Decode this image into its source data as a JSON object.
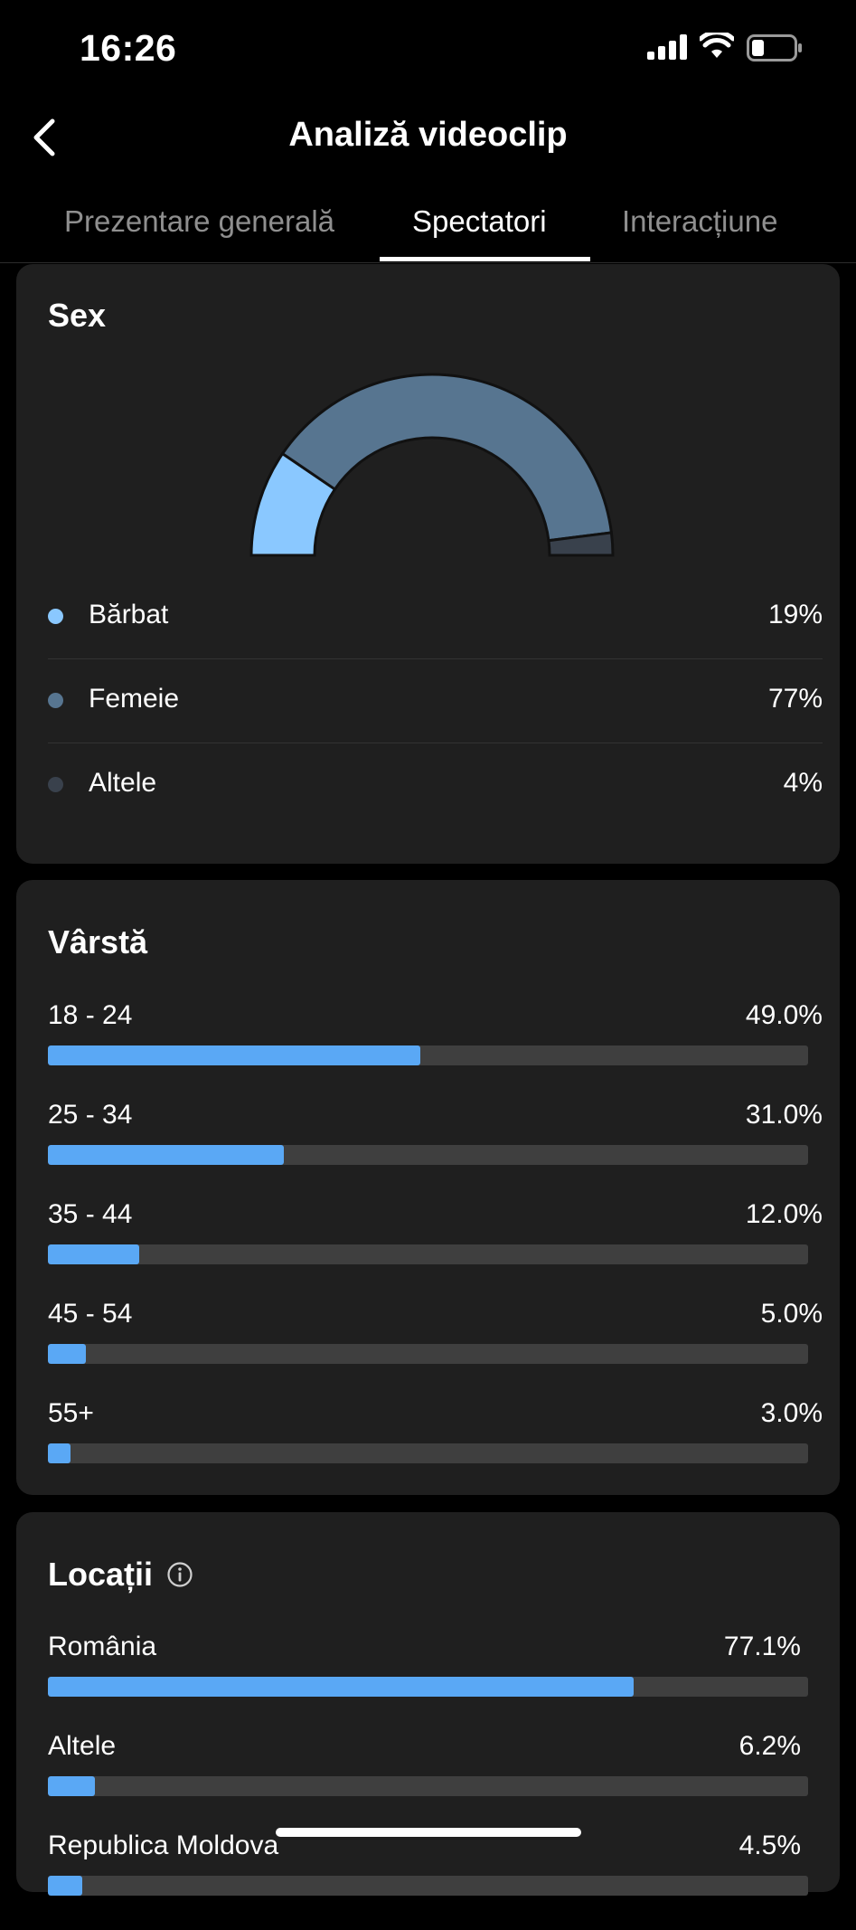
{
  "status": {
    "time": "16:26"
  },
  "header": {
    "title": "Analiză videoclip"
  },
  "tabs": [
    {
      "label": "Prezentare generală",
      "active": false
    },
    {
      "label": "Spectatori",
      "active": true
    },
    {
      "label": "Interacțiune",
      "active": false
    }
  ],
  "sex": {
    "title": "Sex",
    "items": [
      {
        "label": "Bărbat",
        "value": "19%",
        "percent": 19,
        "color": "#8ac8ff"
      },
      {
        "label": "Femeie",
        "value": "77%",
        "percent": 77,
        "color": "#577590"
      },
      {
        "label": "Altele",
        "value": "4%",
        "percent": 4,
        "color": "#39414c"
      }
    ]
  },
  "age": {
    "title": "Vârstă",
    "rows": [
      {
        "label": "18 - 24",
        "value": "49.0%",
        "percent": 49.0
      },
      {
        "label": "25 - 34",
        "value": "31.0%",
        "percent": 31.0
      },
      {
        "label": "35 - 44",
        "value": "12.0%",
        "percent": 12.0
      },
      {
        "label": "45 - 54",
        "value": "5.0%",
        "percent": 5.0
      },
      {
        "label": "55+",
        "value": "3.0%",
        "percent": 3.0
      }
    ]
  },
  "locations": {
    "title": "Locații",
    "rows": [
      {
        "label": "România",
        "value": "77.1%",
        "percent": 77.1
      },
      {
        "label": "Altele",
        "value": "6.2%",
        "percent": 6.2
      },
      {
        "label": "Republica Moldova",
        "value": "4.5%",
        "percent": 4.5
      }
    ]
  },
  "colors": {
    "accent": "#5aa8f5",
    "card": "#1f1f1f",
    "track": "#3f3f3f"
  }
}
